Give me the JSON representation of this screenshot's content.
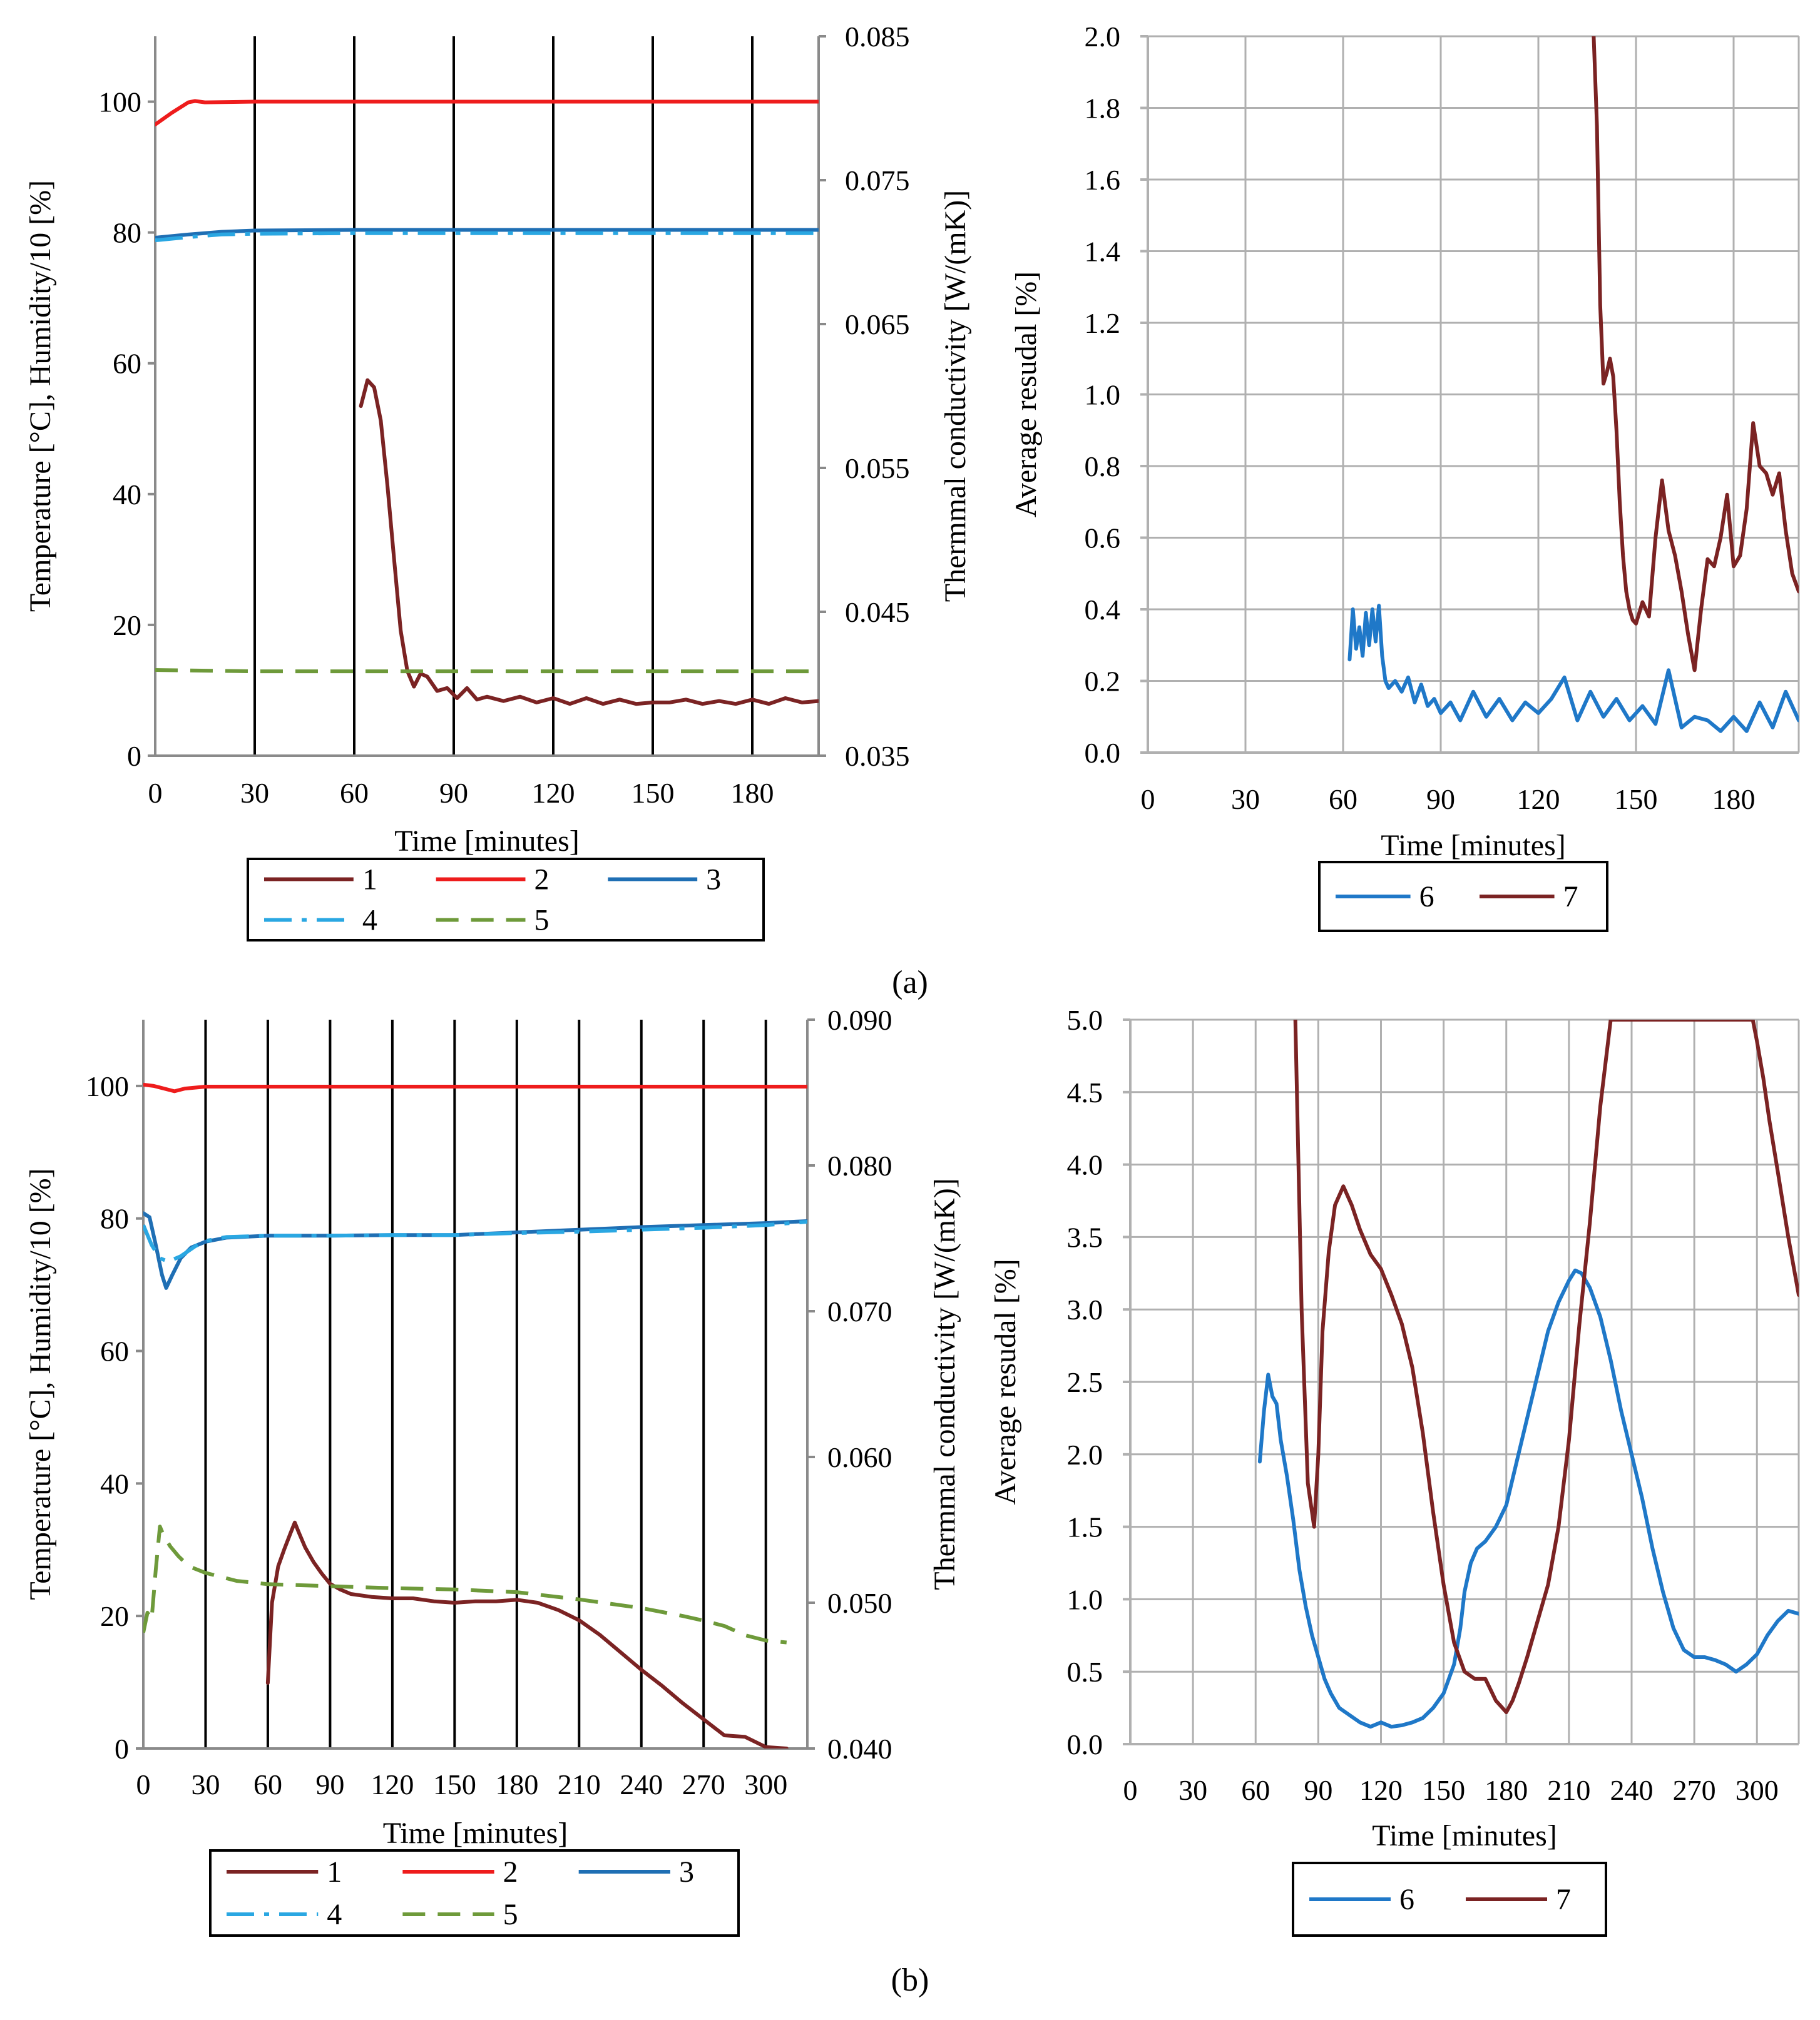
{
  "panel_labels": [
    "(a)",
    "(b)"
  ],
  "chart_data": [
    {
      "panel": "a",
      "type": "line",
      "xlabel": "Time [minutes]",
      "ylabel": "Temperature [°C],  Humidity/10 [%]",
      "y2label": "Thermmal conductivity [W/(mK)]",
      "xlim": [
        0,
        200
      ],
      "xticks": [
        "0",
        "30",
        "60",
        "90",
        "120",
        "150",
        "180"
      ],
      "ylim": [
        0,
        110
      ],
      "yticks": [
        "0",
        "20",
        "40",
        "60",
        "80",
        "100"
      ],
      "y2lim": [
        0.035,
        0.085
      ],
      "y2ticks": [
        "0.035",
        "0.045",
        "0.055",
        "0.065",
        "0.075",
        "0.085"
      ],
      "grid": "vertical",
      "legend": {
        "placement": "bottom",
        "columns": 3
      },
      "series": [
        {
          "name": "1",
          "axis": "y2",
          "color": "#7B2323",
          "dash": "solid",
          "x": [
            62,
            64,
            66,
            68,
            70,
            72,
            74,
            76,
            78,
            80,
            82,
            85,
            88,
            91,
            94,
            97,
            100,
            105,
            110,
            115,
            120,
            125,
            130,
            135,
            140,
            145,
            150,
            155,
            160,
            165,
            170,
            175,
            180,
            185,
            190,
            195,
            200
          ],
          "y": [
            0.0593,
            0.0611,
            0.0606,
            0.0583,
            0.0538,
            0.0487,
            0.0437,
            0.0409,
            0.0398,
            0.0407,
            0.0405,
            0.0395,
            0.0397,
            0.039,
            0.0397,
            0.0389,
            0.0391,
            0.0388,
            0.0391,
            0.0387,
            0.039,
            0.0386,
            0.039,
            0.0386,
            0.0389,
            0.0386,
            0.0387,
            0.0387,
            0.0389,
            0.0386,
            0.0388,
            0.0386,
            0.0389,
            0.0386,
            0.039,
            0.0387,
            0.0388
          ]
        },
        {
          "name": "2",
          "axis": "y",
          "color": "#EE1C1C",
          "dash": "solid",
          "x": [
            0,
            5,
            10,
            12,
            15,
            30,
            60,
            90,
            120,
            150,
            180,
            200
          ],
          "y": [
            96.5,
            98.3,
            99.9,
            100.1,
            99.9,
            100,
            100,
            100,
            100,
            100,
            100,
            100
          ]
        },
        {
          "name": "3",
          "axis": "y",
          "color": "#1F6FB4",
          "dash": "solid",
          "x": [
            0,
            10,
            20,
            30,
            60,
            90,
            120,
            150,
            180,
            200
          ],
          "y": [
            79.2,
            79.7,
            80.1,
            80.3,
            80.4,
            80.4,
            80.4,
            80.4,
            80.4,
            80.4
          ]
        },
        {
          "name": "4",
          "axis": "y",
          "color": "#2AA7E2",
          "dash": "long-dash-dot",
          "x": [
            0,
            10,
            20,
            30,
            60,
            90,
            120,
            150,
            180,
            200
          ],
          "y": [
            78.8,
            79.3,
            79.7,
            79.8,
            79.9,
            79.9,
            79.9,
            79.9,
            79.9,
            79.9
          ]
        },
        {
          "name": "5",
          "axis": "y",
          "color": "#6E9A3A",
          "dash": "dashed",
          "x": [
            0,
            30,
            60,
            90,
            120,
            150,
            180,
            200
          ],
          "y": [
            13.1,
            12.9,
            12.9,
            12.9,
            12.9,
            12.9,
            12.9,
            12.9
          ]
        }
      ]
    },
    {
      "panel": "a",
      "type": "line",
      "xlabel": "Time [minutes]",
      "ylabel": "Average resudal [%]",
      "xlim": [
        0,
        200
      ],
      "xticks": [
        "0",
        "30",
        "60",
        "90",
        "120",
        "150",
        "180"
      ],
      "ylim": [
        0,
        2.0
      ],
      "yticks": [
        "0.0",
        "0.2",
        "0.4",
        "0.6",
        "0.8",
        "1.0",
        "1.2",
        "1.4",
        "1.6",
        "1.8",
        "2.0"
      ],
      "grid": "both",
      "legend": {
        "placement": "bottom",
        "columns": 2
      },
      "series": [
        {
          "name": "6",
          "color": "#1F78C8",
          "dash": "solid",
          "x": [
            62,
            63,
            64,
            65,
            66,
            67,
            68,
            69,
            70,
            71,
            72,
            73,
            74,
            76,
            78,
            80,
            82,
            84,
            86,
            88,
            90,
            93,
            96,
            100,
            104,
            108,
            112,
            116,
            120,
            124,
            128,
            132,
            136,
            140,
            144,
            148,
            152,
            156,
            160,
            164,
            168,
            172,
            176,
            180,
            184,
            188,
            192,
            196,
            200
          ],
          "y": [
            0.26,
            0.4,
            0.29,
            0.35,
            0.27,
            0.39,
            0.3,
            0.4,
            0.31,
            0.41,
            0.27,
            0.2,
            0.18,
            0.2,
            0.17,
            0.21,
            0.14,
            0.19,
            0.13,
            0.15,
            0.11,
            0.14,
            0.09,
            0.17,
            0.1,
            0.15,
            0.09,
            0.14,
            0.11,
            0.15,
            0.21,
            0.09,
            0.17,
            0.1,
            0.15,
            0.09,
            0.13,
            0.08,
            0.23,
            0.07,
            0.1,
            0.09,
            0.06,
            0.1,
            0.06,
            0.14,
            0.07,
            0.17,
            0.09
          ]
        },
        {
          "name": "7",
          "color": "#7B2323",
          "dash": "solid",
          "x": [
            137,
            138,
            139,
            140,
            141,
            142,
            143,
            144,
            145,
            146,
            147,
            148,
            149,
            150,
            152,
            154,
            156,
            158,
            160,
            162,
            164,
            166,
            168,
            170,
            172,
            174,
            176,
            178,
            180,
            182,
            184,
            186,
            188,
            190,
            192,
            194,
            196,
            198,
            200
          ],
          "y": [
            2.0,
            1.75,
            1.25,
            1.03,
            1.06,
            1.1,
            1.05,
            0.9,
            0.7,
            0.55,
            0.45,
            0.4,
            0.37,
            0.36,
            0.42,
            0.38,
            0.6,
            0.76,
            0.62,
            0.55,
            0.45,
            0.33,
            0.23,
            0.4,
            0.54,
            0.52,
            0.6,
            0.72,
            0.52,
            0.55,
            0.68,
            0.92,
            0.8,
            0.78,
            0.72,
            0.78,
            0.62,
            0.5,
            0.45
          ]
        }
      ]
    },
    {
      "panel": "b",
      "type": "line",
      "xlabel": "Time [minutes]",
      "ylabel": "Temperature [°C],  Humidity/10 [%]",
      "y2label": "Thermmal conductivity [W/(mK)]",
      "xlim": [
        0,
        320
      ],
      "xticks": [
        "0",
        "30",
        "60",
        "90",
        "120",
        "150",
        "180",
        "210",
        "240",
        "270",
        "300"
      ],
      "ylim": [
        0,
        110
      ],
      "yticks": [
        "0",
        "20",
        "40",
        "60",
        "80",
        "100"
      ],
      "y2lim": [
        0.04,
        0.09
      ],
      "y2ticks": [
        "0.040",
        "0.050",
        "0.060",
        "0.070",
        "0.080",
        "0.090"
      ],
      "grid": "vertical",
      "legend": {
        "placement": "bottom",
        "columns": 3
      },
      "series": [
        {
          "name": "1",
          "axis": "y2",
          "color": "#7B2323",
          "dash": "solid",
          "x": [
            60,
            62,
            65,
            68,
            71,
            73,
            75,
            78,
            82,
            86,
            90,
            95,
            100,
            110,
            120,
            130,
            140,
            150,
            160,
            170,
            180,
            190,
            200,
            210,
            220,
            230,
            240,
            250,
            260,
            270,
            280,
            290,
            300,
            310
          ],
          "y": [
            0.0445,
            0.05,
            0.0525,
            0.0537,
            0.0548,
            0.0555,
            0.0548,
            0.0538,
            0.0528,
            0.052,
            0.0513,
            0.0509,
            0.0506,
            0.0504,
            0.0503,
            0.0503,
            0.0501,
            0.05,
            0.0501,
            0.0501,
            0.0502,
            0.05,
            0.0495,
            0.0488,
            0.0478,
            0.0466,
            0.0454,
            0.0443,
            0.0431,
            0.042,
            0.0409,
            0.0408,
            0.0401,
            0.04
          ]
        },
        {
          "name": "2",
          "axis": "y",
          "color": "#EE1C1C",
          "dash": "solid",
          "x": [
            0,
            5,
            10,
            15,
            20,
            30,
            60,
            90,
            120,
            150,
            180,
            210,
            240,
            270,
            300,
            320
          ],
          "y": [
            100.2,
            100.0,
            99.6,
            99.2,
            99.6,
            99.9,
            99.9,
            99.9,
            99.9,
            99.9,
            99.9,
            99.9,
            99.9,
            99.9,
            99.9,
            99.9
          ]
        },
        {
          "name": "3",
          "axis": "y",
          "color": "#1F6FB4",
          "dash": "solid",
          "x": [
            0,
            3,
            6,
            9,
            11,
            14,
            18,
            23,
            30,
            40,
            60,
            90,
            120,
            150,
            180,
            210,
            240,
            270,
            300,
            320
          ],
          "y": [
            80.8,
            80.2,
            76.0,
            71.5,
            69.5,
            71.5,
            74.0,
            75.6,
            76.5,
            77.1,
            77.4,
            77.4,
            77.5,
            77.5,
            77.9,
            78.3,
            78.7,
            79.0,
            79.3,
            79.6
          ]
        },
        {
          "name": "4",
          "axis": "y",
          "color": "#2AA7E2",
          "dash": "long-dash-dot",
          "x": [
            0,
            4,
            8,
            12,
            18,
            25,
            30,
            40,
            60,
            90,
            120,
            150,
            180,
            210,
            240,
            270,
            300,
            320
          ],
          "y": [
            79.0,
            76.0,
            74.0,
            73.5,
            74.3,
            75.8,
            76.6,
            77.2,
            77.4,
            77.4,
            77.5,
            77.5,
            77.8,
            78.0,
            78.3,
            78.6,
            79.0,
            79.5
          ]
        },
        {
          "name": "5",
          "axis": "y",
          "color": "#6E9A3A",
          "dash": "dashed",
          "x": [
            0,
            2,
            4,
            6,
            8,
            10,
            13,
            17,
            22,
            30,
            45,
            60,
            90,
            120,
            150,
            180,
            210,
            240,
            260,
            270,
            280,
            290,
            300,
            310
          ],
          "y": [
            17.5,
            20.5,
            19.5,
            27.0,
            33.5,
            32.0,
            30.5,
            29.0,
            27.5,
            26.5,
            25.3,
            24.8,
            24.5,
            24.2,
            24.0,
            23.6,
            22.5,
            21.2,
            20.0,
            19.3,
            18.5,
            17.1,
            16.3,
            16.0
          ]
        }
      ]
    },
    {
      "panel": "b",
      "type": "line",
      "xlabel": "Time [minutes]",
      "ylabel": "Average resudal [%]",
      "xlim": [
        0,
        320
      ],
      "xticks": [
        "0",
        "30",
        "60",
        "90",
        "120",
        "150",
        "180",
        "210",
        "240",
        "270",
        "300"
      ],
      "ylim": [
        0,
        5.0
      ],
      "yticks": [
        "0.0",
        "0.5",
        "1.0",
        "1.5",
        "2.0",
        "2.5",
        "3.0",
        "3.5",
        "4.0",
        "4.5",
        "5.0"
      ],
      "grid": "both",
      "legend": {
        "placement": "bottom",
        "columns": 2
      },
      "series": [
        {
          "name": "6",
          "color": "#1F78C8",
          "dash": "solid",
          "x": [
            62,
            64,
            66,
            68,
            70,
            72,
            75,
            78,
            81,
            84,
            87,
            90,
            93,
            96,
            100,
            105,
            110,
            115,
            120,
            125,
            130,
            135,
            140,
            145,
            150,
            155,
            158,
            160,
            163,
            166,
            170,
            175,
            180,
            185,
            190,
            195,
            200,
            205,
            210,
            213,
            216,
            220,
            225,
            230,
            235,
            240,
            245,
            250,
            255,
            260,
            265,
            270,
            275,
            280,
            285,
            290,
            295,
            300,
            305,
            310,
            315,
            320
          ],
          "y": [
            1.95,
            2.3,
            2.55,
            2.4,
            2.35,
            2.1,
            1.85,
            1.55,
            1.2,
            0.95,
            0.75,
            0.6,
            0.45,
            0.35,
            0.25,
            0.2,
            0.15,
            0.12,
            0.15,
            0.12,
            0.13,
            0.15,
            0.18,
            0.25,
            0.35,
            0.55,
            0.8,
            1.05,
            1.25,
            1.35,
            1.4,
            1.5,
            1.65,
            1.95,
            2.25,
            2.55,
            2.85,
            3.05,
            3.2,
            3.27,
            3.25,
            3.15,
            2.95,
            2.65,
            2.3,
            2.0,
            1.7,
            1.35,
            1.05,
            0.8,
            0.65,
            0.6,
            0.6,
            0.58,
            0.55,
            0.5,
            0.55,
            0.62,
            0.75,
            0.85,
            0.92,
            0.9
          ]
        },
        {
          "name": "7",
          "color": "#7B2323",
          "dash": "solid",
          "x": [
            79,
            82,
            85,
            88,
            90,
            92,
            95,
            98,
            102,
            106,
            110,
            115,
            120,
            125,
            130,
            135,
            140,
            145,
            150,
            155,
            160,
            165,
            170,
            175,
            180,
            183,
            186,
            190,
            195,
            200,
            205,
            210,
            215,
            220,
            225,
            230,
            298,
            300,
            303,
            306,
            310,
            315,
            320
          ],
          "y": [
            5.0,
            3.0,
            1.8,
            1.5,
            2.0,
            2.85,
            3.4,
            3.72,
            3.85,
            3.72,
            3.55,
            3.38,
            3.28,
            3.1,
            2.9,
            2.6,
            2.15,
            1.6,
            1.1,
            0.7,
            0.5,
            0.45,
            0.45,
            0.3,
            0.22,
            0.3,
            0.42,
            0.6,
            0.85,
            1.1,
            1.5,
            2.1,
            2.9,
            3.6,
            4.4,
            5.0,
            5.0,
            4.85,
            4.6,
            4.3,
            3.95,
            3.5,
            3.1
          ]
        }
      ]
    }
  ]
}
